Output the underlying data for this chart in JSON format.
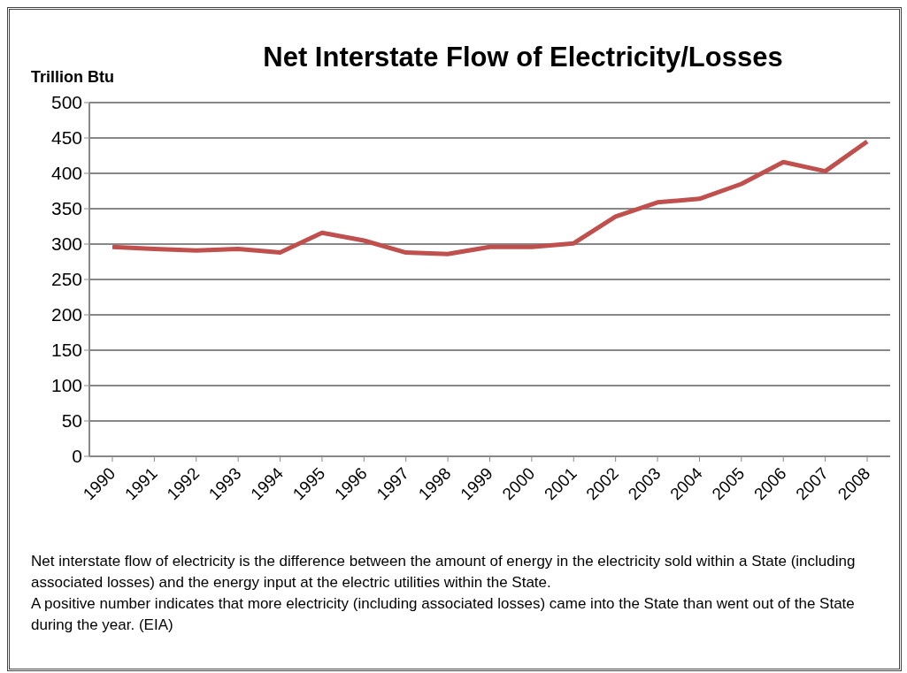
{
  "chart_data": {
    "type": "line",
    "title": "Net Interstate Flow of Electricity/Losses",
    "ylabel": "Trillion Btu",
    "categories": [
      "1990",
      "1991",
      "1992",
      "1993",
      "1994",
      "1995",
      "1996",
      "1997",
      "1998",
      "1999",
      "2000",
      "2001",
      "2002",
      "2003",
      "2004",
      "2005",
      "2006",
      "2007",
      "2008"
    ],
    "series": [
      {
        "color": "#c0504d",
        "values": [
          296,
          293,
          291,
          293,
          288,
          316,
          305,
          288,
          286,
          296,
          296,
          301,
          339,
          359,
          364,
          385,
          416,
          403,
          445
        ]
      }
    ],
    "ylim": [
      0,
      500
    ],
    "yticks": [
      0,
      50,
      100,
      150,
      200,
      250,
      300,
      350,
      400,
      450,
      500
    ],
    "grid": "y",
    "legend": false,
    "marker": "none",
    "line_style": "solid",
    "annotations": [
      "Net interstate flow of electricity is the difference between the amount of energy in the electricity sold within a State (including associated losses) and the energy input at the electric utilities within the State.",
      "A positive  number indicates that more electricity (including associated losses) came into the State than went out of the State during the year. (EIA)"
    ]
  }
}
